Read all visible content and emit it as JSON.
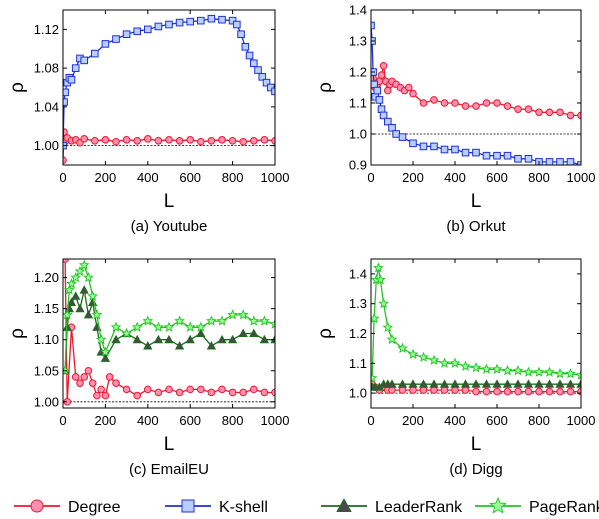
{
  "legend": [
    {
      "label": "Degree",
      "color": "#e8192c",
      "fill": "#ff8fb0",
      "marker": "circle"
    },
    {
      "label": "K-shell",
      "color": "#1f2fd6",
      "fill": "#b9cfff",
      "marker": "square"
    },
    {
      "label": "LeaderRank",
      "color": "#1a6b1a",
      "fill": "#4a4a4a",
      "marker": "triangle"
    },
    {
      "label": "PageRank",
      "color": "#22c422",
      "fill": "#9cff9c",
      "marker": "star"
    }
  ],
  "chart_data": [
    {
      "type": "line",
      "caption": "(a) Youtube",
      "xlabel": "L",
      "ylabel": "ρ",
      "xlim": [
        0,
        1000
      ],
      "ylim": [
        0.98,
        1.14
      ],
      "xticks": [
        0,
        200,
        400,
        600,
        800,
        1000
      ],
      "yticks": [
        1.0,
        1.04,
        1.08,
        1.12
      ],
      "ytick_labels": [
        "1.00",
        "1.04",
        "1.08",
        "1.12"
      ],
      "reference_line": 1.0,
      "series": [
        {
          "name": "Degree",
          "x": [
            0,
            5,
            10,
            20,
            40,
            60,
            80,
            100,
            150,
            200,
            250,
            300,
            350,
            400,
            450,
            500,
            550,
            600,
            650,
            700,
            750,
            800,
            850,
            900,
            950,
            1000
          ],
          "y": [
            0.985,
            1.014,
            1.004,
            1.008,
            1.005,
            1.006,
            1.003,
            1.007,
            1.005,
            1.006,
            1.004,
            1.006,
            1.005,
            1.007,
            1.005,
            1.006,
            1.005,
            1.006,
            1.004,
            1.005,
            1.006,
            1.005,
            1.004,
            1.005,
            1.006,
            1.005
          ]
        },
        {
          "name": "K-shell",
          "x": [
            0,
            5,
            10,
            20,
            30,
            40,
            60,
            80,
            100,
            150,
            200,
            250,
            300,
            350,
            400,
            450,
            500,
            550,
            600,
            650,
            700,
            750,
            800,
            820,
            840,
            860,
            880,
            900,
            920,
            940,
            960,
            980,
            1000
          ],
          "y": [
            1.0,
            1.045,
            1.055,
            1.065,
            1.07,
            1.068,
            1.08,
            1.09,
            1.088,
            1.095,
            1.105,
            1.11,
            1.115,
            1.118,
            1.12,
            1.123,
            1.125,
            1.127,
            1.128,
            1.129,
            1.131,
            1.13,
            1.129,
            1.125,
            1.115,
            1.102,
            1.093,
            1.085,
            1.078,
            1.071,
            1.065,
            1.06,
            1.056
          ]
        }
      ]
    },
    {
      "type": "line",
      "caption": "(b) Orkut",
      "xlabel": "L",
      "ylabel": "ρ",
      "xlim": [
        0,
        1000
      ],
      "ylim": [
        0.9,
        1.4
      ],
      "xticks": [
        0,
        200,
        400,
        600,
        800,
        1000
      ],
      "yticks": [
        0.9,
        1.0,
        1.1,
        1.2,
        1.3,
        1.4
      ],
      "ytick_labels": [
        "0.9",
        "1.0",
        "1.1",
        "1.2",
        "1.3",
        "1.4"
      ],
      "reference_line": 1.0,
      "series": [
        {
          "name": "Degree",
          "x": [
            0,
            10,
            20,
            30,
            40,
            50,
            60,
            70,
            80,
            90,
            100,
            120,
            140,
            160,
            180,
            200,
            250,
            300,
            350,
            400,
            450,
            500,
            550,
            600,
            650,
            700,
            750,
            800,
            850,
            900,
            950,
            1000
          ],
          "y": [
            1.2,
            1.18,
            1.15,
            1.16,
            1.17,
            1.19,
            1.22,
            1.17,
            1.14,
            1.16,
            1.17,
            1.16,
            1.15,
            1.14,
            1.15,
            1.13,
            1.1,
            1.11,
            1.1,
            1.1,
            1.09,
            1.09,
            1.1,
            1.1,
            1.09,
            1.08,
            1.08,
            1.07,
            1.07,
            1.07,
            1.06,
            1.06
          ]
        },
        {
          "name": "K-shell",
          "x": [
            0,
            5,
            10,
            15,
            20,
            30,
            40,
            50,
            60,
            80,
            100,
            120,
            150,
            200,
            250,
            300,
            350,
            400,
            450,
            500,
            550,
            600,
            650,
            700,
            750,
            800,
            850,
            900,
            950,
            1000
          ],
          "y": [
            1.35,
            1.3,
            1.2,
            1.16,
            1.12,
            1.14,
            1.11,
            1.08,
            1.06,
            1.04,
            1.02,
            1.0,
            0.99,
            0.97,
            0.96,
            0.96,
            0.95,
            0.95,
            0.94,
            0.94,
            0.93,
            0.93,
            0.93,
            0.92,
            0.92,
            0.91,
            0.91,
            0.91,
            0.91,
            0.9
          ]
        }
      ]
    },
    {
      "type": "line",
      "caption": "(c) EmailEU",
      "xlabel": "L",
      "ylabel": "ρ",
      "xlim": [
        0,
        1000
      ],
      "ylim": [
        0.99,
        1.23
      ],
      "xticks": [
        0,
        200,
        400,
        600,
        800,
        1000
      ],
      "yticks": [
        1.0,
        1.05,
        1.1,
        1.15,
        1.2
      ],
      "ytick_labels": [
        "1.00",
        "1.05",
        "1.10",
        "1.15",
        "1.20"
      ],
      "reference_line": 1.0,
      "series": [
        {
          "name": "Degree",
          "x": [
            10,
            20,
            40,
            60,
            80,
            100,
            120,
            140,
            160,
            180,
            200,
            220,
            250,
            300,
            350,
            400,
            450,
            500,
            550,
            600,
            650,
            700,
            750,
            800,
            850,
            900,
            950,
            1000
          ],
          "y": [
            1.23,
            1.0,
            1.12,
            1.04,
            1.03,
            1.04,
            1.05,
            1.03,
            1.01,
            1.02,
            1.01,
            1.04,
            1.03,
            1.02,
            1.01,
            1.02,
            1.015,
            1.02,
            1.015,
            1.02,
            1.02,
            1.015,
            1.02,
            1.015,
            1.015,
            1.02,
            1.015,
            1.015
          ]
        },
        {
          "name": "LeaderRank",
          "x": [
            10,
            20,
            30,
            40,
            60,
            80,
            100,
            120,
            140,
            160,
            180,
            200,
            250,
            300,
            350,
            400,
            450,
            500,
            550,
            600,
            650,
            700,
            750,
            800,
            850,
            900,
            950,
            1000
          ],
          "y": [
            1.05,
            1.12,
            1.15,
            1.16,
            1.17,
            1.15,
            1.18,
            1.14,
            1.16,
            1.12,
            1.08,
            1.07,
            1.1,
            1.11,
            1.1,
            1.09,
            1.1,
            1.1,
            1.09,
            1.1,
            1.11,
            1.09,
            1.1,
            1.1,
            1.11,
            1.11,
            1.1,
            1.1
          ]
        },
        {
          "name": "PageRank",
          "x": [
            10,
            20,
            30,
            40,
            60,
            80,
            100,
            120,
            140,
            160,
            180,
            200,
            250,
            300,
            350,
            400,
            450,
            500,
            550,
            600,
            650,
            700,
            750,
            800,
            850,
            900,
            950,
            1000
          ],
          "y": [
            1.05,
            1.14,
            1.18,
            1.19,
            1.2,
            1.21,
            1.22,
            1.2,
            1.17,
            1.14,
            1.1,
            1.08,
            1.12,
            1.11,
            1.12,
            1.13,
            1.12,
            1.12,
            1.13,
            1.12,
            1.12,
            1.13,
            1.13,
            1.14,
            1.14,
            1.13,
            1.13,
            1.125
          ]
        }
      ]
    },
    {
      "type": "line",
      "caption": "(d) Digg",
      "xlabel": "L",
      "ylabel": "ρ",
      "xlim": [
        0,
        1000
      ],
      "ylim": [
        0.95,
        1.45
      ],
      "xticks": [
        0,
        200,
        400,
        600,
        800,
        1000
      ],
      "yticks": [
        1.0,
        1.1,
        1.2,
        1.3,
        1.4
      ],
      "ytick_labels": [
        "1.0",
        "1.1",
        "1.2",
        "1.3",
        "1.4"
      ],
      "reference_line": 1.0,
      "series": [
        {
          "name": "Degree",
          "x": [
            5,
            20,
            40,
            60,
            80,
            100,
            150,
            200,
            250,
            300,
            350,
            400,
            450,
            500,
            550,
            600,
            650,
            700,
            750,
            800,
            850,
            900,
            950,
            1000
          ],
          "y": [
            1.03,
            1.02,
            1.01,
            1.02,
            1.01,
            1.01,
            1.01,
            1.01,
            1.01,
            1.01,
            1.01,
            1.01,
            1.01,
            1.005,
            1.005,
            1.005,
            1.005,
            1.005,
            1.005,
            1.005,
            1.005,
            1.005,
            1.005,
            1.005
          ]
        },
        {
          "name": "LeaderRank",
          "x": [
            5,
            20,
            40,
            60,
            80,
            100,
            150,
            200,
            250,
            300,
            350,
            400,
            450,
            500,
            550,
            600,
            650,
            700,
            750,
            800,
            850,
            900,
            950,
            1000
          ],
          "y": [
            1.02,
            1.02,
            1.02,
            1.03,
            1.03,
            1.03,
            1.03,
            1.03,
            1.03,
            1.03,
            1.03,
            1.03,
            1.03,
            1.03,
            1.03,
            1.03,
            1.03,
            1.03,
            1.03,
            1.03,
            1.03,
            1.03,
            1.03,
            1.03
          ]
        },
        {
          "name": "PageRank",
          "x": [
            5,
            15,
            25,
            35,
            45,
            60,
            80,
            100,
            150,
            200,
            250,
            300,
            350,
            400,
            450,
            500,
            550,
            600,
            650,
            700,
            750,
            800,
            850,
            900,
            950,
            1000
          ],
          "y": [
            1.05,
            1.25,
            1.38,
            1.42,
            1.38,
            1.3,
            1.22,
            1.18,
            1.15,
            1.13,
            1.12,
            1.11,
            1.1,
            1.1,
            1.09,
            1.085,
            1.08,
            1.08,
            1.075,
            1.075,
            1.07,
            1.07,
            1.07,
            1.065,
            1.065,
            1.06
          ]
        }
      ]
    }
  ]
}
